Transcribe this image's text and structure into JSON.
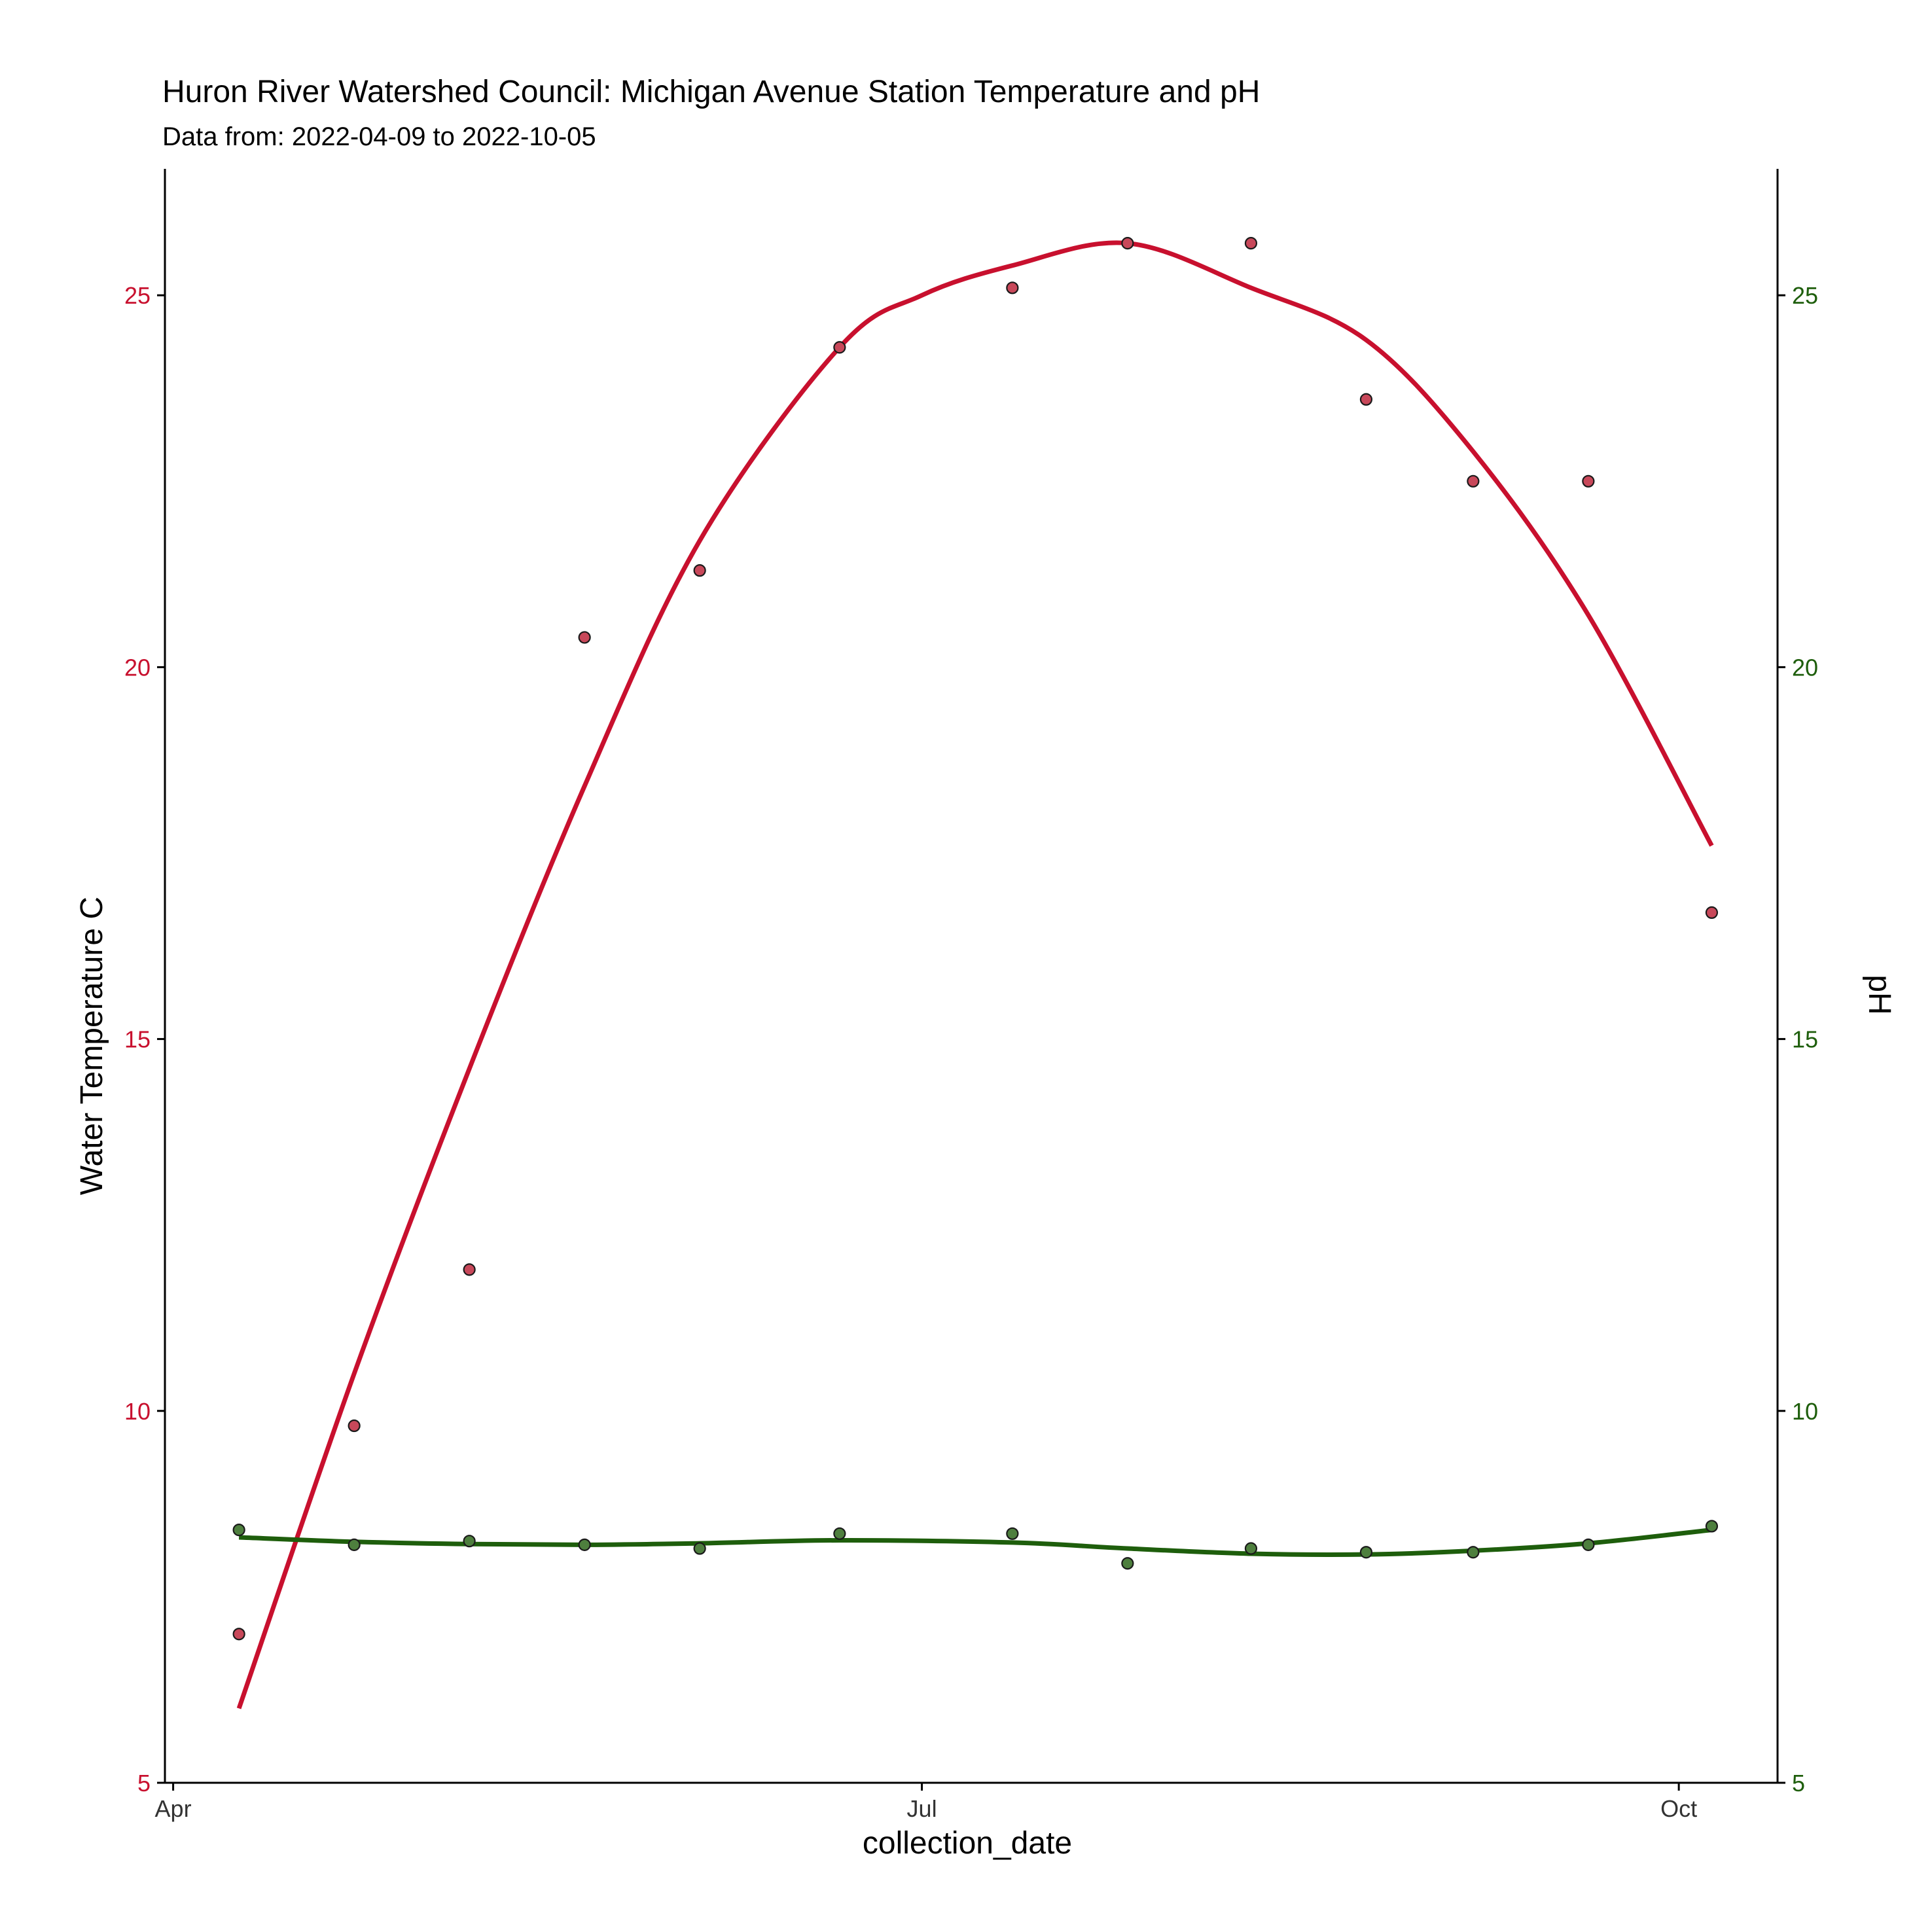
{
  "chart_data": {
    "type": "line+scatter",
    "title": "Huron River Watershed Council: Michigan Avenue Station Temperature and pH",
    "subtitle": "Data from: 2022-04-09 to 2022-10-05",
    "xlabel": "collection_date",
    "ylabel_left": "Water Temperature C",
    "ylabel_right": "pH",
    "x_ticks": [
      {
        "label": "Apr",
        "date": "2022-04-01"
      },
      {
        "label": "Jul",
        "date": "2022-07-01"
      },
      {
        "label": "Oct",
        "date": "2022-10-01"
      }
    ],
    "xlim": [
      "2022-03-31",
      "2022-10-13"
    ],
    "ylim": [
      5,
      26.7
    ],
    "y_ticks": [
      5,
      10,
      15,
      20,
      25
    ],
    "grid": false,
    "colors": {
      "temperature": "#C8102E",
      "ph": "#1E5E0C",
      "temperature_point_fill": "#C8485A",
      "ph_point_fill": "#4E7F3E",
      "point_stroke": "#1a1a1a",
      "axis": "#000000",
      "tick_text": "#333333"
    },
    "series": [
      {
        "name": "Water Temperature C",
        "axis": "left",
        "points": [
          {
            "x": "2022-04-09",
            "y": 7.0
          },
          {
            "x": "2022-04-23",
            "y": 9.8
          },
          {
            "x": "2022-05-07",
            "y": 11.9
          },
          {
            "x": "2022-05-21",
            "y": 20.4
          },
          {
            "x": "2022-06-04",
            "y": 21.3
          },
          {
            "x": "2022-06-21",
            "y": 24.3
          },
          {
            "x": "2022-07-12",
            "y": 25.1
          },
          {
            "x": "2022-07-26",
            "y": 25.7
          },
          {
            "x": "2022-08-10",
            "y": 25.7
          },
          {
            "x": "2022-08-24",
            "y": 23.6
          },
          {
            "x": "2022-09-06",
            "y": 22.5
          },
          {
            "x": "2022-09-20",
            "y": 22.5
          },
          {
            "x": "2022-10-05",
            "y": 16.7
          }
        ],
        "smooth": [
          {
            "x": "2022-04-09",
            "y": 6.0
          },
          {
            "x": "2022-04-23",
            "y": 10.5
          },
          {
            "x": "2022-05-07",
            "y": 14.6
          },
          {
            "x": "2022-05-21",
            "y": 18.4
          },
          {
            "x": "2022-06-04",
            "y": 21.7
          },
          {
            "x": "2022-06-21",
            "y": 24.3
          },
          {
            "x": "2022-07-01",
            "y": 25.0
          },
          {
            "x": "2022-07-12",
            "y": 25.4
          },
          {
            "x": "2022-07-26",
            "y": 25.7
          },
          {
            "x": "2022-08-10",
            "y": 25.1
          },
          {
            "x": "2022-08-24",
            "y": 24.4
          },
          {
            "x": "2022-09-06",
            "y": 22.9
          },
          {
            "x": "2022-09-20",
            "y": 20.7
          },
          {
            "x": "2022-10-05",
            "y": 17.6
          }
        ]
      },
      {
        "name": "pH",
        "axis": "right",
        "points": [
          {
            "x": "2022-04-09",
            "y": 8.4
          },
          {
            "x": "2022-04-23",
            "y": 8.2
          },
          {
            "x": "2022-05-07",
            "y": 8.25
          },
          {
            "x": "2022-05-21",
            "y": 8.2
          },
          {
            "x": "2022-06-04",
            "y": 8.15
          },
          {
            "x": "2022-06-21",
            "y": 8.35
          },
          {
            "x": "2022-07-12",
            "y": 8.35
          },
          {
            "x": "2022-07-26",
            "y": 7.95
          },
          {
            "x": "2022-08-10",
            "y": 8.15
          },
          {
            "x": "2022-08-24",
            "y": 8.1
          },
          {
            "x": "2022-09-06",
            "y": 8.1
          },
          {
            "x": "2022-09-20",
            "y": 8.2
          },
          {
            "x": "2022-10-05",
            "y": 8.45
          }
        ],
        "smooth": [
          {
            "x": "2022-04-09",
            "y": 8.3
          },
          {
            "x": "2022-04-23",
            "y": 8.24
          },
          {
            "x": "2022-05-07",
            "y": 8.21
          },
          {
            "x": "2022-05-21",
            "y": 8.2
          },
          {
            "x": "2022-06-04",
            "y": 8.22
          },
          {
            "x": "2022-06-21",
            "y": 8.26
          },
          {
            "x": "2022-07-12",
            "y": 8.23
          },
          {
            "x": "2022-07-26",
            "y": 8.15
          },
          {
            "x": "2022-08-10",
            "y": 8.08
          },
          {
            "x": "2022-08-24",
            "y": 8.07
          },
          {
            "x": "2022-09-06",
            "y": 8.12
          },
          {
            "x": "2022-09-20",
            "y": 8.22
          },
          {
            "x": "2022-10-05",
            "y": 8.4
          }
        ]
      }
    ]
  }
}
